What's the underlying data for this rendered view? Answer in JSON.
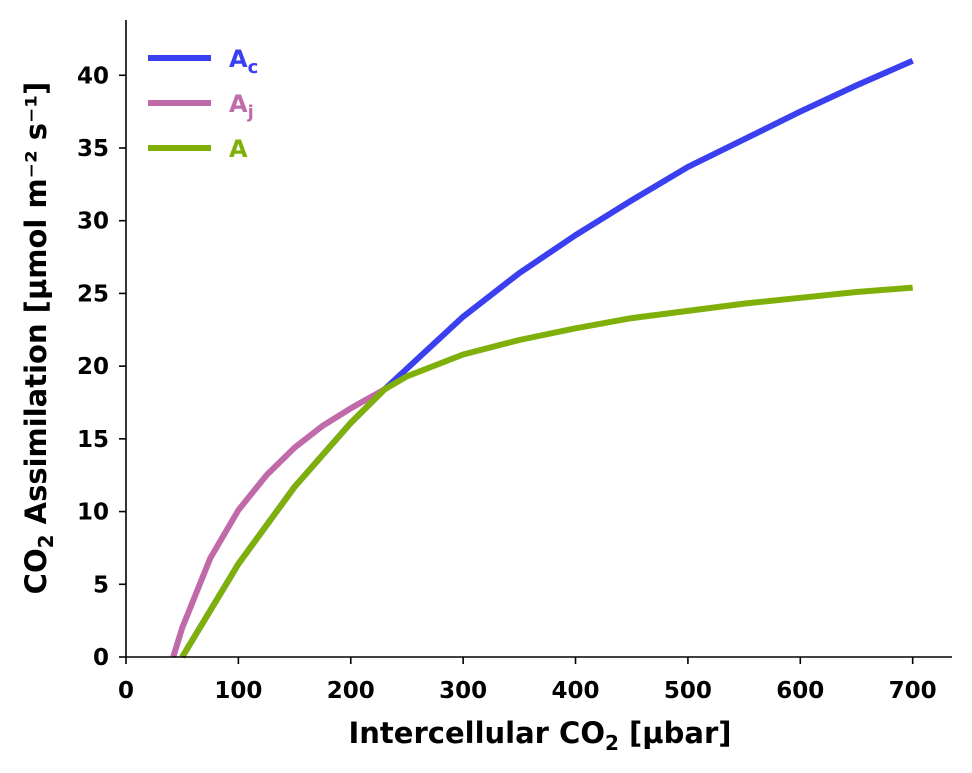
{
  "chart_data": {
    "type": "line",
    "xlabel": "Intercellular CO₂ [µbar]",
    "xlabel_main": "Intercellular CO",
    "xlabel_sub": "2",
    "xlabel_tail": " [µbar]",
    "ylabel": "CO₂ Assimilation [µmol m⁻² s⁻¹]",
    "ylabel_main": "CO",
    "ylabel_sub": "2",
    "ylabel_tail": " Assimilation [µmol m⁻² s⁻¹]",
    "xlim": [
      0,
      735
    ],
    "ylim": [
      0,
      43.8
    ],
    "xticks": [
      0,
      100,
      200,
      300,
      400,
      500,
      600,
      700
    ],
    "yticks": [
      0,
      5,
      10,
      15,
      20,
      25,
      30,
      35,
      40
    ],
    "grid": false,
    "legend_position": "top-left",
    "series": [
      {
        "name": "A",
        "name_sub": "c",
        "color": "#3a3ff0",
        "x": [
          50,
          100,
          150,
          200,
          230,
          300,
          350,
          400,
          450,
          500,
          550,
          600,
          650,
          700
        ],
        "y": [
          0.0,
          6.4,
          11.7,
          16.1,
          18.4,
          23.4,
          26.4,
          29.0,
          31.4,
          33.7,
          35.6,
          37.5,
          39.3,
          41.0
        ]
      },
      {
        "name": "A",
        "name_sub": "j",
        "color": "#c06aaa",
        "x": [
          42,
          50,
          75,
          100,
          125,
          150,
          175,
          200,
          230
        ],
        "y": [
          0.0,
          2.0,
          6.8,
          10.1,
          12.5,
          14.4,
          15.9,
          17.1,
          18.4
        ]
      },
      {
        "name": "A",
        "name_sub": "",
        "color": "#7fb009",
        "x": [
          50,
          100,
          150,
          200,
          230,
          250,
          300,
          350,
          400,
          450,
          500,
          550,
          600,
          650,
          700
        ],
        "y": [
          0.0,
          6.4,
          11.7,
          16.1,
          18.4,
          19.3,
          20.8,
          21.8,
          22.6,
          23.3,
          23.8,
          24.3,
          24.7,
          25.1,
          25.4
        ]
      }
    ]
  }
}
